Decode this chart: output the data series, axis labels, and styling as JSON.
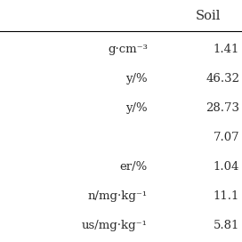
{
  "col_header": "Soil",
  "row_labels": [
    "g·cm⁻³",
    "y/%",
    "y/%",
    "",
    "er/%",
    "n/mg·kg⁻¹",
    "us/mg·kg⁻¹"
  ],
  "soil_values": [
    "1.41",
    "46.32",
    "28.73",
    "7.07",
    "1.04",
    "11.1",
    "5.81"
  ],
  "background_color": "#ffffff",
  "text_color": "#2b2b2b",
  "header_line_color": "#000000",
  "font_size": 9.5,
  "header_font_size": 10.5
}
